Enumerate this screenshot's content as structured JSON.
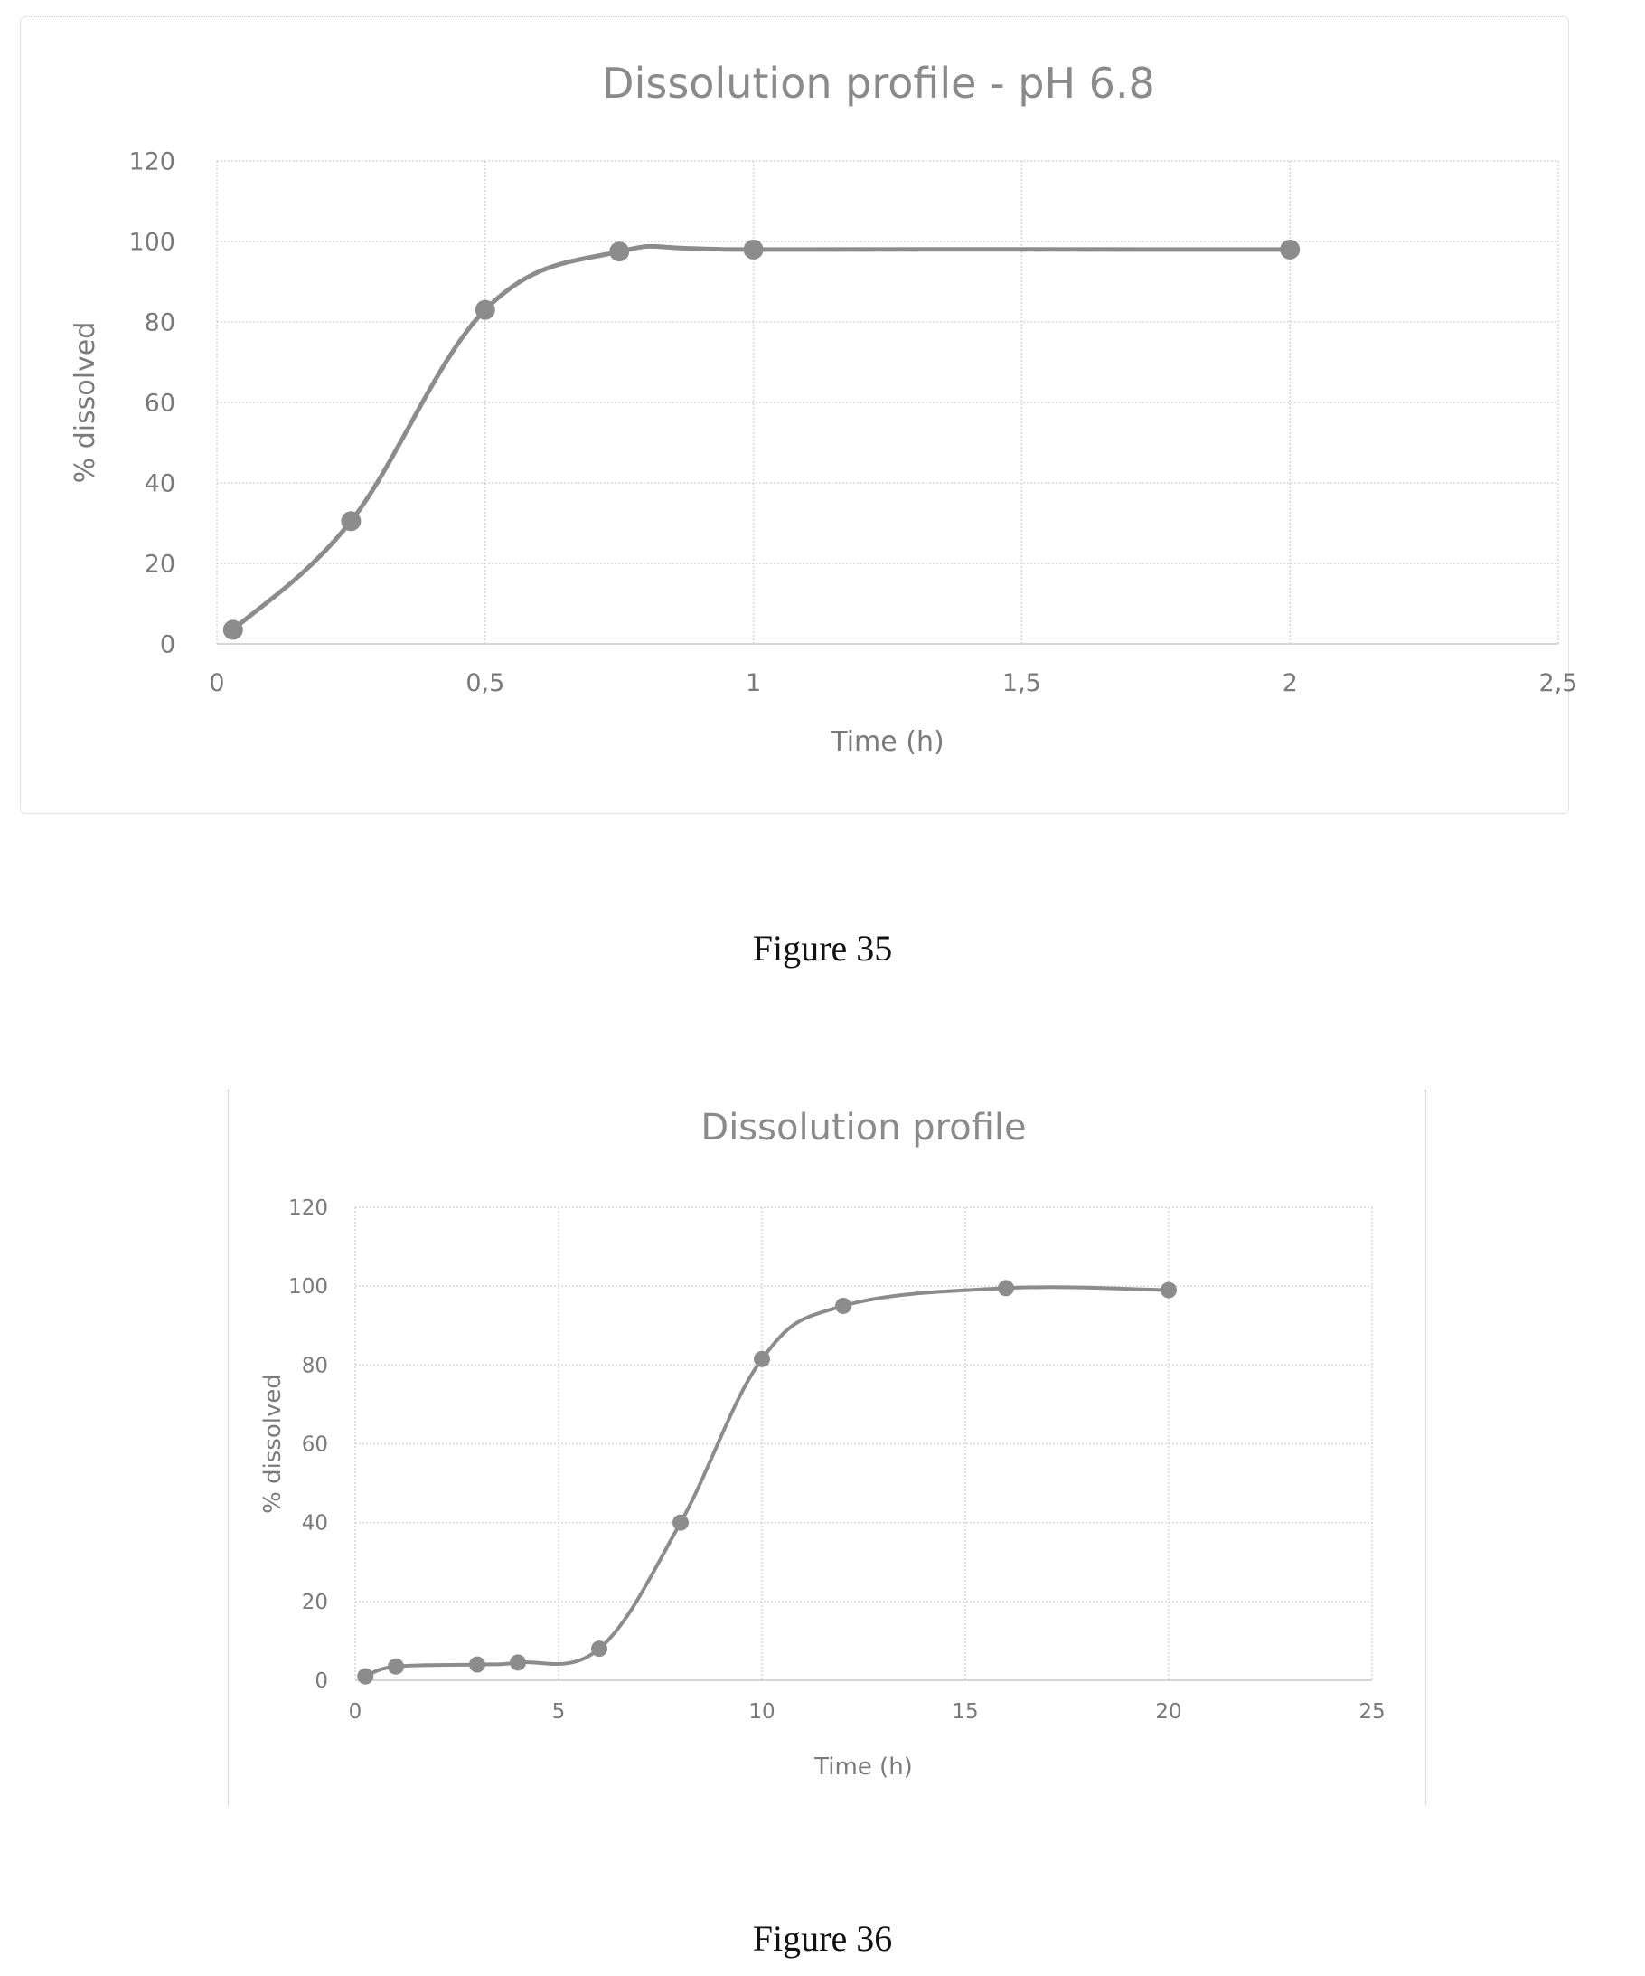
{
  "figures": [
    {
      "caption": "Figure 35"
    },
    {
      "caption": "Figure 36"
    }
  ],
  "chart_data": [
    {
      "type": "line",
      "title": "Dissolution profile - pH 6.8",
      "xlabel": "Time (h)",
      "ylabel": "% dissolved",
      "xlim": [
        0,
        2.5
      ],
      "ylim": [
        0,
        120
      ],
      "x_ticks": [
        "0",
        "0,5",
        "1",
        "1,5",
        "2",
        "2,5"
      ],
      "y_ticks": [
        "0",
        "20",
        "40",
        "60",
        "80",
        "100",
        "120"
      ],
      "grid": true,
      "smooth": true,
      "series": [
        {
          "x": [
            0.03,
            0.25,
            0.5,
            0.75,
            1,
            2
          ],
          "y": [
            3.5,
            30.5,
            83,
            97.5,
            98,
            98
          ],
          "color": "#8c8c8c"
        }
      ]
    },
    {
      "type": "line",
      "title": "Dissolution profile",
      "xlabel": "Time (h)",
      "ylabel": "% dissolved",
      "xlim": [
        0,
        25
      ],
      "ylim": [
        0,
        120
      ],
      "x_ticks": [
        "0",
        "5",
        "10",
        "15",
        "20",
        "25"
      ],
      "y_ticks": [
        "0",
        "20",
        "40",
        "60",
        "80",
        "100",
        "120"
      ],
      "grid": true,
      "smooth": true,
      "series": [
        {
          "x": [
            0.25,
            1,
            3,
            4,
            6,
            8,
            10,
            12,
            16,
            20
          ],
          "y": [
            1,
            3.5,
            4,
            4.5,
            8,
            40,
            81.5,
            95,
            99.5,
            99
          ],
          "color": "#8c8c8c"
        }
      ]
    }
  ]
}
